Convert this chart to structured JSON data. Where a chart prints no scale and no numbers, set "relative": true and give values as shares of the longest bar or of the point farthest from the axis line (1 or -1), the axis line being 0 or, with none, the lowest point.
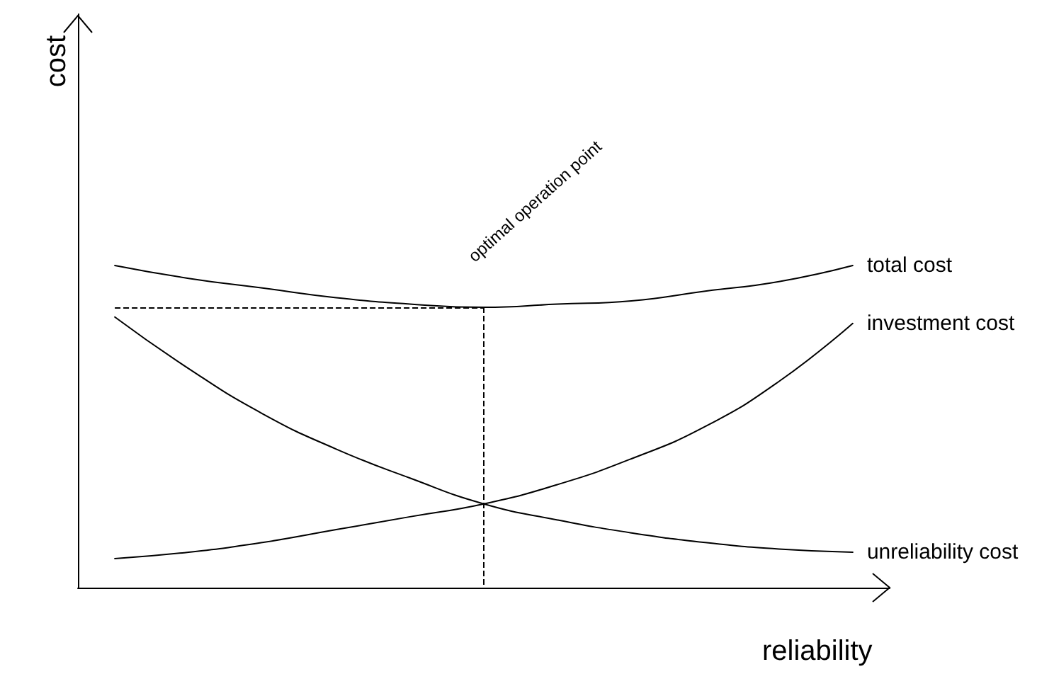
{
  "chart_data": {
    "type": "line",
    "relative": true,
    "xlabel": "reliability",
    "categories": [
      null,
      null,
      null,
      null,
      null,
      null,
      null,
      null,
      null,
      null,
      null
    ],
    "series": [
      {
        "name": "total cost",
        "color": "#000000",
        "values": [
          1,
          0.96,
          0.93,
          0.9,
          0.88,
          0.87,
          0.88,
          0.89,
          0.92,
          0.95,
          1
        ]
      },
      {
        "name": "investment cost",
        "color": "#000000",
        "values": [
          0.09,
          0.11,
          0.14,
          0.18,
          0.22,
          0.26,
          0.32,
          0.4,
          0.5,
          0.64,
          0.82
        ]
      },
      {
        "name": "unreliability cost",
        "color": "#000000",
        "values": [
          0.84,
          0.68,
          0.54,
          0.43,
          0.34,
          0.26,
          0.21,
          0.17,
          0.14,
          0.12,
          0.11
        ]
      }
    ],
    "ref_lines": [
      {
        "axis": "y",
        "value": 0.87,
        "line_style": "dashed",
        "color": "#000000"
      }
    ],
    "annotations": [
      "cost",
      {
        "text": "optimal operation point",
        "y": 0.87
      }
    ],
    "grid": false,
    "legend": false,
    "marker": "none",
    "line_style": "solid"
  }
}
